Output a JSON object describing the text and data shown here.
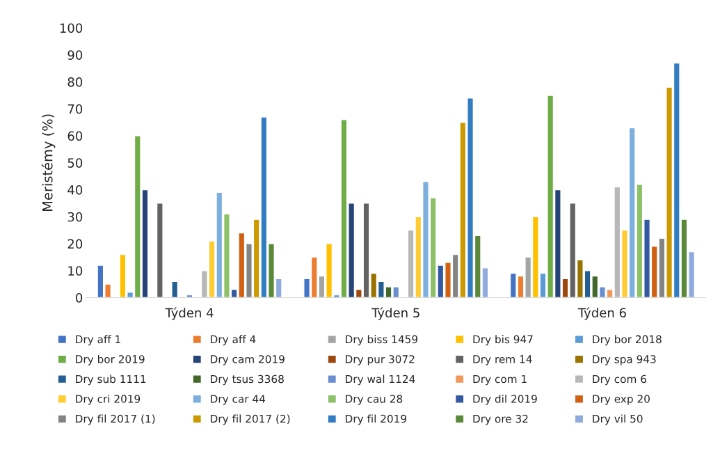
{
  "chart_data": {
    "type": "bar",
    "ylabel": "Meristémy (%)",
    "categories": [
      "Týden 4",
      "Týden 5",
      "Týden 6"
    ],
    "ylim": [
      0,
      100
    ],
    "yticks": [
      0,
      10,
      20,
      30,
      40,
      50,
      60,
      70,
      80,
      90,
      100
    ],
    "grid": false,
    "legend": "bottom",
    "series": [
      {
        "name": "Dry aff 1",
        "color": "#4472c4",
        "values": [
          12,
          7,
          9
        ]
      },
      {
        "name": "Dry aff 4",
        "color": "#ed7d31",
        "values": [
          5,
          15,
          8
        ]
      },
      {
        "name": "Dry biss 1459",
        "color": "#a5a5a5",
        "values": [
          null,
          8,
          15
        ]
      },
      {
        "name": "Dry bis 947",
        "color": "#ffc000",
        "values": [
          16,
          20,
          30
        ]
      },
      {
        "name": "Dry bor 2018",
        "color": "#5b9bd5",
        "values": [
          2,
          1,
          9
        ]
      },
      {
        "name": "Dry bor 2019",
        "color": "#70ad47",
        "values": [
          60,
          66,
          75
        ]
      },
      {
        "name": "Dry cam 2019",
        "color": "#264478",
        "values": [
          40,
          35,
          40
        ]
      },
      {
        "name": "Dry pur 3072",
        "color": "#9e480e",
        "values": [
          null,
          3,
          7
        ]
      },
      {
        "name": "Dry rem 14",
        "color": "#636363",
        "values": [
          35,
          35,
          35
        ]
      },
      {
        "name": "Dry spa 943",
        "color": "#997300",
        "values": [
          null,
          9,
          14
        ]
      },
      {
        "name": "Dry sub 1111",
        "color": "#255e91",
        "values": [
          6,
          6,
          10
        ]
      },
      {
        "name": "Dry tsus 3368",
        "color": "#43682b",
        "values": [
          null,
          4,
          8
        ]
      },
      {
        "name": "Dry wal 1124",
        "color": "#698ed0",
        "values": [
          1,
          4,
          4
        ]
      },
      {
        "name": "Dry com 1",
        "color": "#f1975a",
        "values": [
          null,
          null,
          3
        ]
      },
      {
        "name": "Dry com 6",
        "color": "#b7b7b7",
        "values": [
          10,
          25,
          41
        ]
      },
      {
        "name": "Dry cri 2019",
        "color": "#ffcd33",
        "values": [
          21,
          30,
          25
        ]
      },
      {
        "name": "Dry car 44",
        "color": "#7cafdd",
        "values": [
          39,
          43,
          63
        ]
      },
      {
        "name": "Dry cau 28",
        "color": "#8cc168",
        "values": [
          31,
          37,
          42
        ]
      },
      {
        "name": "Dry dil 2019",
        "color": "#335aa1",
        "values": [
          3,
          12,
          29
        ]
      },
      {
        "name": "Dry exp 20",
        "color": "#d26012",
        "values": [
          24,
          13,
          19
        ]
      },
      {
        "name": "Dry fil 2017 (1)",
        "color": "#848484",
        "values": [
          20,
          16,
          22
        ]
      },
      {
        "name": "Dry fil 2017 (2)",
        "color": "#cc9a00",
        "values": [
          29,
          65,
          78
        ]
      },
      {
        "name": "Dry fil 2019",
        "color": "#327dc2",
        "values": [
          67,
          74,
          87
        ]
      },
      {
        "name": "Dry ore 32",
        "color": "#5a8a39",
        "values": [
          20,
          23,
          29
        ]
      },
      {
        "name": "Dry vil 50",
        "color": "#8faadc",
        "values": [
          7,
          11,
          17
        ]
      }
    ]
  }
}
